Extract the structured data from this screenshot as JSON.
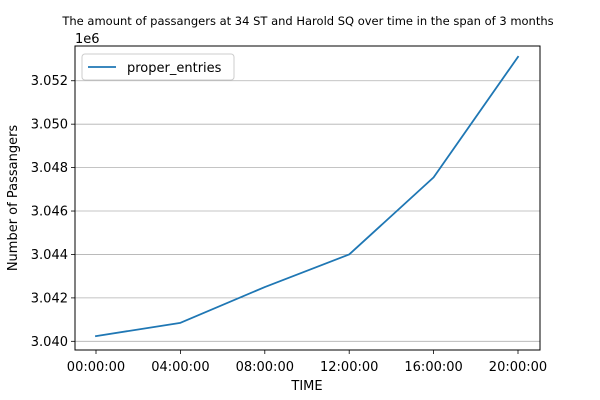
{
  "chart_data": {
    "type": "line",
    "title": "The amount of passangers at 34 ST and Harold SQ over time in the span of 3 months",
    "xlabel": "TIME",
    "ylabel": "Number of Passangers",
    "y_offset_label": "1e6",
    "y_multiplier": 1000000,
    "x": [
      "00:00:00",
      "04:00:00",
      "08:00:00",
      "12:00:00",
      "16:00:00",
      "20:00:00"
    ],
    "x_ticks": [
      "00:00:00",
      "04:00:00",
      "08:00:00",
      "12:00:00",
      "16:00:00",
      "20:00:00"
    ],
    "y_ticks": [
      3.04,
      3.042,
      3.044,
      3.046,
      3.048,
      3.05,
      3.052
    ],
    "y_tick_labels": [
      "3.040",
      "3.042",
      "3.044",
      "3.046",
      "3.048",
      "3.050",
      "3.052"
    ],
    "ylim": [
      3.0396,
      3.0536
    ],
    "grid": "horizontal",
    "legend_position": "upper-left",
    "series": [
      {
        "name": "proper_entries",
        "color": "#1f77b4",
        "values": [
          3040240,
          3040850,
          3042500,
          3044000,
          3047550,
          3053100
        ]
      }
    ]
  }
}
